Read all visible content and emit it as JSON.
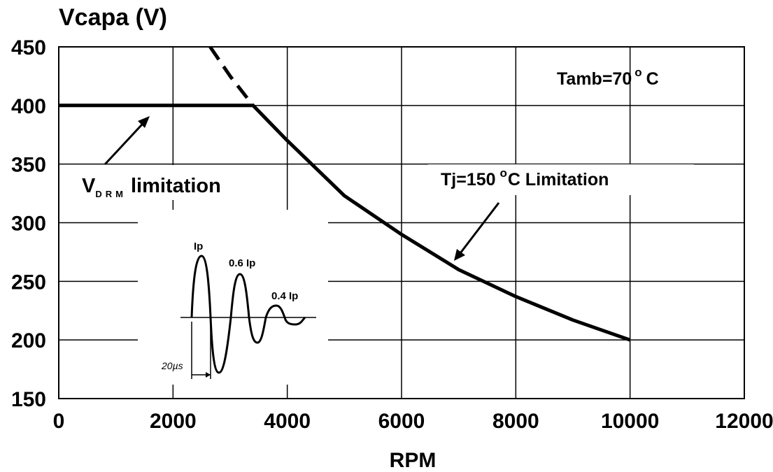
{
  "chart_data": {
    "type": "line",
    "ylabel": "Vcapa (V)",
    "xlabel": "RPM",
    "xlim": [
      0,
      12000
    ],
    "ylim": [
      150,
      450
    ],
    "x_ticks": [
      "0",
      "2000",
      "4000",
      "6000",
      "8000",
      "10000",
      "12000"
    ],
    "y_ticks": [
      "450",
      "400",
      "350",
      "300",
      "250",
      "200",
      "150"
    ],
    "grid": true,
    "series": [
      {
        "style": "solid",
        "x": [
          0,
          3400
        ],
        "y": [
          400,
          400
        ]
      },
      {
        "style": "dashed",
        "x": [
          2650,
          3000,
          3400
        ],
        "y": [
          450,
          425,
          400
        ]
      },
      {
        "style": "solid",
        "x": [
          3400,
          4000,
          5000,
          6000,
          7000,
          8000,
          9000,
          10000
        ],
        "y": [
          400,
          370,
          323,
          290,
          260,
          237,
          217,
          200
        ]
      }
    ],
    "annotations": {
      "tamb": "Tamb=70",
      "tamb_unit": "C",
      "vdrm_main": "V",
      "vdrm_sub": "DRM",
      "vdrm_rest": "limitation",
      "tj_main": "Tj=150",
      "tj_rest": "C Limitation",
      "degree": "o"
    },
    "inset": {
      "peak1": "Ip",
      "peak2": "0.6 Ip",
      "peak3": "0.4 Ip",
      "time_num": "20",
      "time_unit": "µs"
    }
  }
}
